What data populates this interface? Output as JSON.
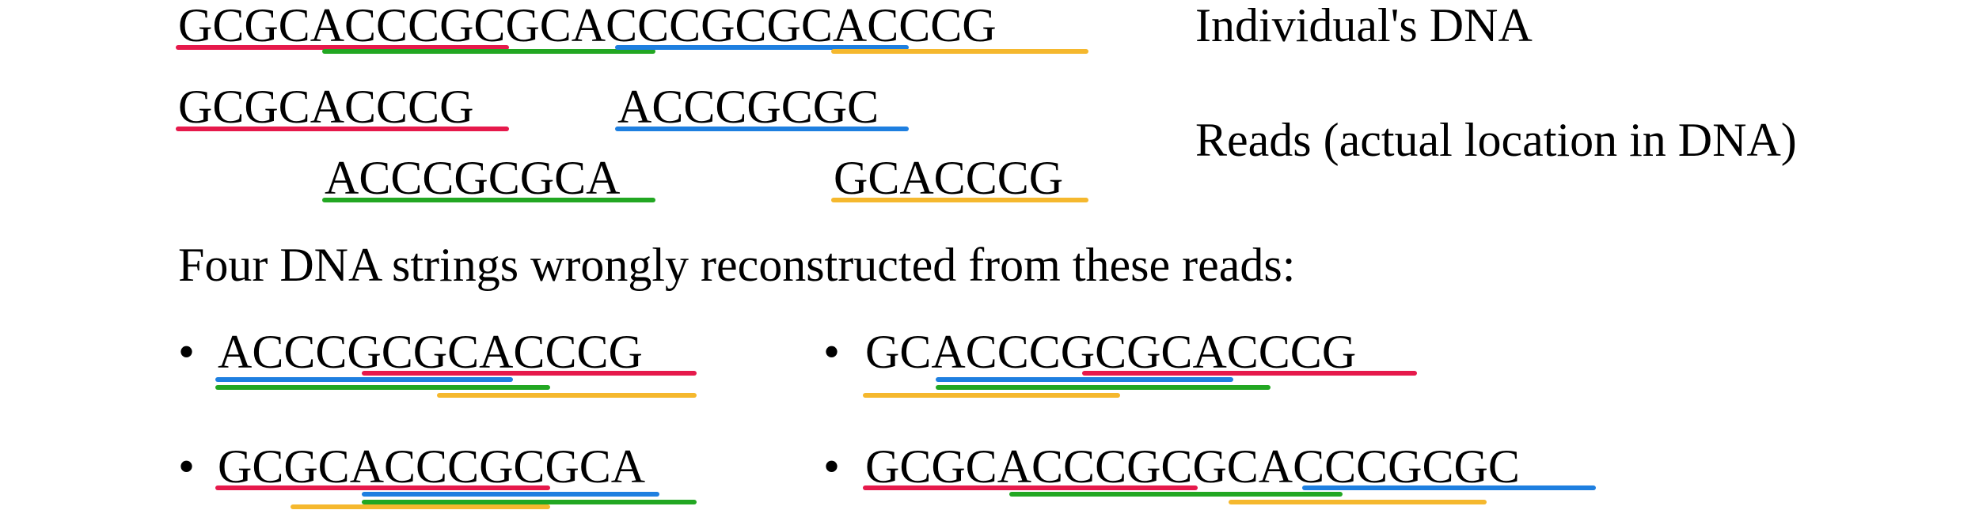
{
  "labels": {
    "dna_caption": "Individual's DNA",
    "reads_caption": "Reads (actual location in DNA)",
    "wrong_caption": "Four DNA strings wrongly reconstructed from these reads:",
    "bullet": "•"
  },
  "dna": "GCGCACCCGCGCACCCGCGCACCCG",
  "reads": [
    "GCGCACCCG",
    "ACCCGCGCA",
    "ACCCGCGC",
    "GCACCCG"
  ],
  "wrong": [
    "ACCCGCGCACCCG",
    "GCACCCGCGCACCCG",
    "GCGCACCCGCGCA",
    "GCGCACCCGCGCACCCGCGC"
  ],
  "colors": {
    "red": "#e6194b",
    "green": "#22a722",
    "blue": "#1e7fe0",
    "yellow": "#f5b82e"
  }
}
